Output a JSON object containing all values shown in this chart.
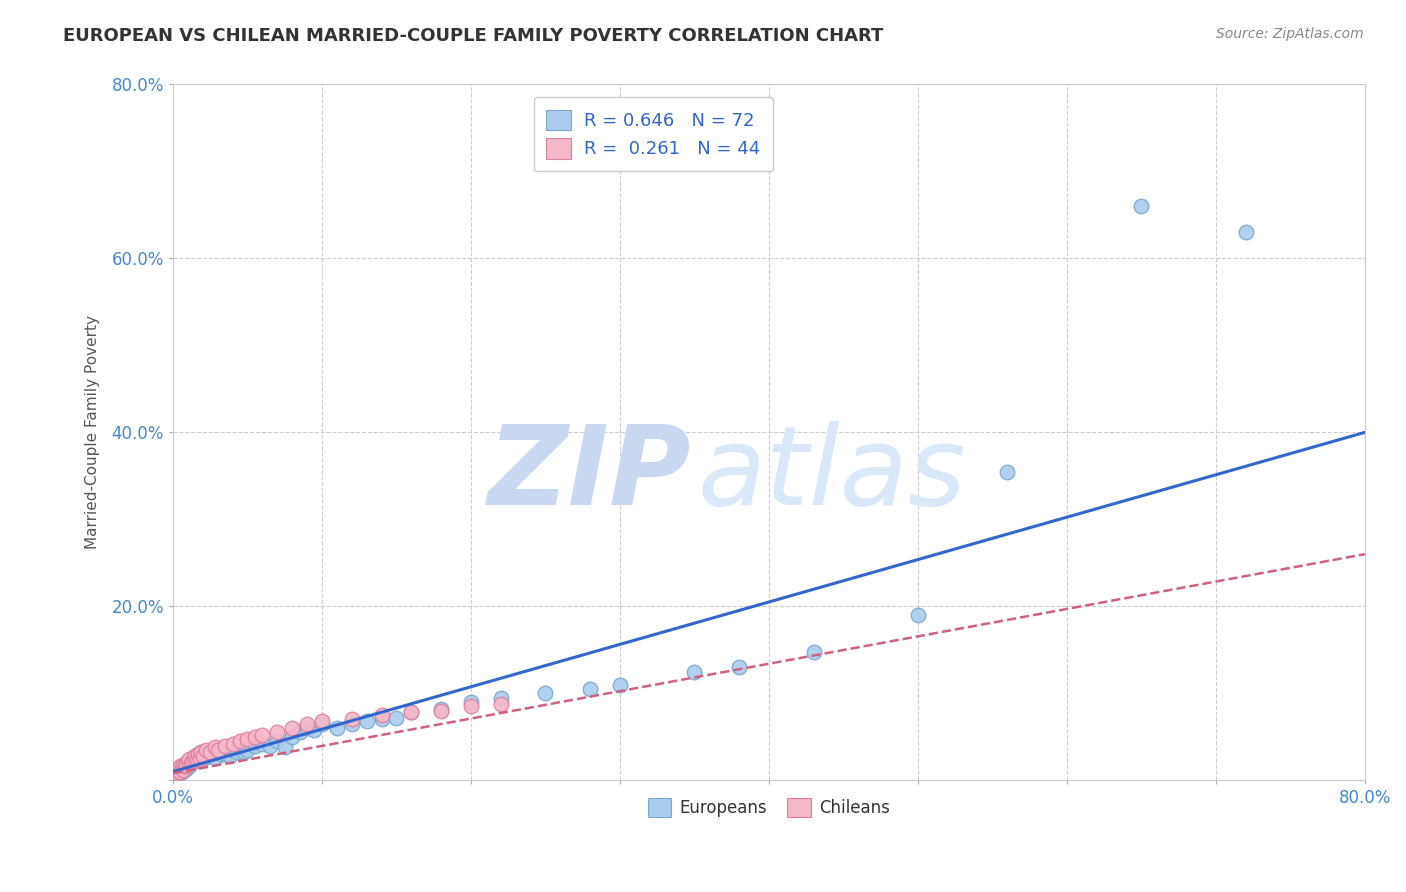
{
  "title": "EUROPEAN VS CHILEAN MARRIED-COUPLE FAMILY POVERTY CORRELATION CHART",
  "source_text": "Source: ZipAtlas.com",
  "ylabel": "Married-Couple Family Poverty",
  "xlim": [
    0,
    0.8
  ],
  "ylim": [
    0,
    0.8
  ],
  "european_R": 0.646,
  "european_N": 72,
  "chilean_R": 0.261,
  "chilean_N": 44,
  "european_color": "#aaccee",
  "european_edge": "#7aaad0",
  "chilean_color": "#f5b8c8",
  "chilean_edge": "#e080a0",
  "trend_european_color": "#3366cc",
  "trend_chilean_color": "#d06080",
  "background_color": "#ffffff",
  "grid_color": "#cccccc",
  "watermark_zip": "ZIP",
  "watermark_atlas": "atlas",
  "watermark_color_zip": "#c8d8f0",
  "watermark_color_atlas": "#d8e8f8",
  "title_color": "#333333",
  "axis_label_color": "#555555",
  "tick_label_color": "#4488cc",
  "legend_R_color": "#3366cc",
  "legend_label_color": "#333333",
  "source_color": "#888888",
  "european_x": [
    0.001,
    0.002,
    0.002,
    0.003,
    0.003,
    0.004,
    0.004,
    0.005,
    0.005,
    0.006,
    0.006,
    0.007,
    0.007,
    0.008,
    0.008,
    0.009,
    0.009,
    0.01,
    0.01,
    0.011,
    0.011,
    0.012,
    0.013,
    0.014,
    0.015,
    0.016,
    0.017,
    0.018,
    0.019,
    0.02,
    0.022,
    0.024,
    0.026,
    0.028,
    0.03,
    0.032,
    0.035,
    0.038,
    0.04,
    0.043,
    0.045,
    0.048,
    0.05,
    0.055,
    0.06,
    0.065,
    0.07,
    0.075,
    0.08,
    0.085,
    0.09,
    0.095,
    0.1,
    0.11,
    0.12,
    0.13,
    0.14,
    0.15,
    0.16,
    0.18,
    0.2,
    0.22,
    0.25,
    0.28,
    0.3,
    0.35,
    0.38,
    0.43,
    0.5,
    0.56,
    0.65,
    0.72
  ],
  "european_y": [
    0.005,
    0.008,
    0.004,
    0.01,
    0.006,
    0.012,
    0.007,
    0.015,
    0.009,
    0.014,
    0.01,
    0.016,
    0.012,
    0.018,
    0.014,
    0.02,
    0.013,
    0.018,
    0.016,
    0.022,
    0.017,
    0.02,
    0.025,
    0.022,
    0.028,
    0.024,
    0.03,
    0.022,
    0.032,
    0.025,
    0.03,
    0.028,
    0.032,
    0.026,
    0.035,
    0.03,
    0.03,
    0.028,
    0.035,
    0.032,
    0.038,
    0.033,
    0.035,
    0.04,
    0.042,
    0.04,
    0.045,
    0.038,
    0.05,
    0.055,
    0.06,
    0.058,
    0.065,
    0.06,
    0.065,
    0.068,
    0.07,
    0.072,
    0.078,
    0.082,
    0.09,
    0.095,
    0.1,
    0.105,
    0.11,
    0.125,
    0.13,
    0.148,
    0.19,
    0.355,
    0.66,
    0.63
  ],
  "chilean_x": [
    0.001,
    0.002,
    0.003,
    0.003,
    0.004,
    0.005,
    0.005,
    0.006,
    0.007,
    0.007,
    0.008,
    0.009,
    0.009,
    0.01,
    0.011,
    0.012,
    0.013,
    0.014,
    0.015,
    0.016,
    0.017,
    0.018,
    0.019,
    0.02,
    0.022,
    0.025,
    0.028,
    0.03,
    0.035,
    0.04,
    0.045,
    0.05,
    0.055,
    0.06,
    0.07,
    0.08,
    0.09,
    0.1,
    0.12,
    0.14,
    0.16,
    0.18,
    0.2,
    0.22
  ],
  "chilean_y": [
    0.005,
    0.009,
    0.008,
    0.012,
    0.013,
    0.01,
    0.016,
    0.015,
    0.012,
    0.018,
    0.016,
    0.02,
    0.018,
    0.022,
    0.025,
    0.02,
    0.022,
    0.025,
    0.028,
    0.024,
    0.03,
    0.025,
    0.032,
    0.028,
    0.035,
    0.032,
    0.038,
    0.035,
    0.04,
    0.042,
    0.045,
    0.048,
    0.05,
    0.052,
    0.055,
    0.06,
    0.065,
    0.068,
    0.07,
    0.075,
    0.078,
    0.08,
    0.085,
    0.088
  ],
  "euro_trend_x0": 0.0,
  "euro_trend_y0": 0.01,
  "euro_trend_x1": 0.8,
  "euro_trend_y1": 0.4,
  "chile_trend_x0": 0.0,
  "chile_trend_y0": 0.008,
  "chile_trend_x1": 0.8,
  "chile_trend_y1": 0.26
}
